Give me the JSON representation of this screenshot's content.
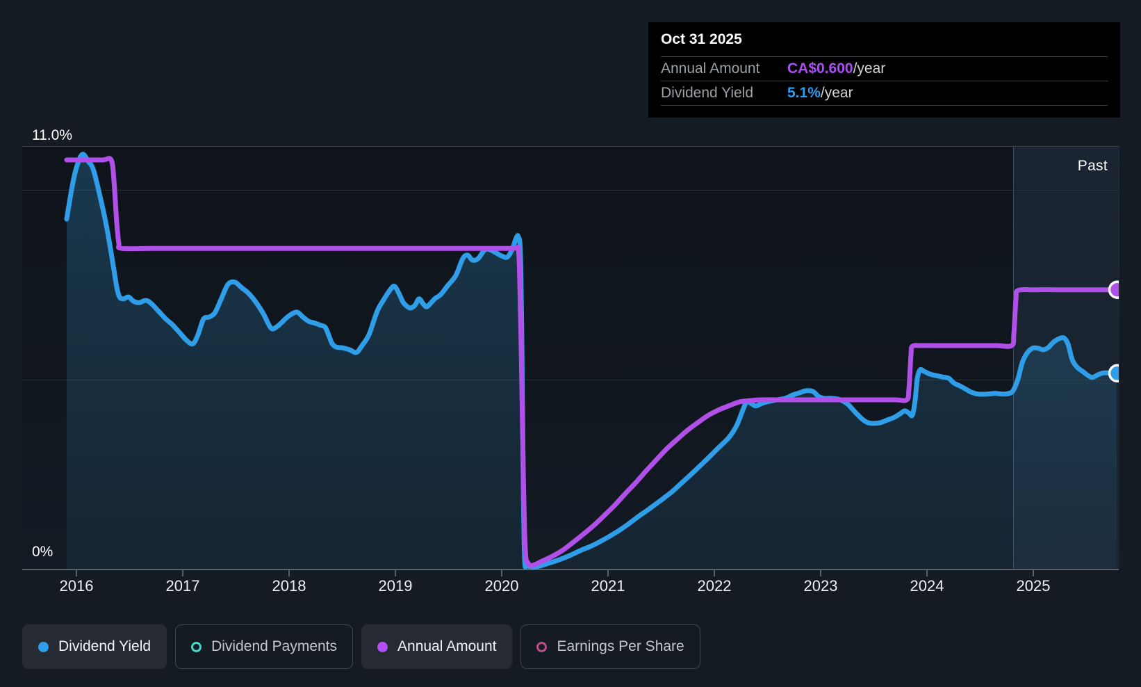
{
  "tooltip": {
    "date": "Oct 31 2025",
    "rows": [
      {
        "label": "Annual Amount",
        "value": "CA$0.600",
        "suffix": "/year",
        "value_color": "#ab4ef2"
      },
      {
        "label": "Dividend Yield",
        "value": "5.1%",
        "suffix": "/year",
        "value_color": "#2b9df2"
      }
    ]
  },
  "axis": {
    "y_top_label": "11.0%",
    "y_bottom_label": "0%",
    "years": [
      "2016",
      "2017",
      "2018",
      "2019",
      "2020",
      "2021",
      "2022",
      "2023",
      "2024",
      "2025"
    ],
    "past_label": "Past"
  },
  "legend": [
    {
      "label": "Dividend Yield",
      "swatch": "dot",
      "color": "#2f9de8",
      "active": true
    },
    {
      "label": "Dividend Payments",
      "swatch": "ring",
      "color": "#41d8c4",
      "active": false
    },
    {
      "label": "Annual Amount",
      "swatch": "dot",
      "color": "#b14ff0",
      "active": true
    },
    {
      "label": "Earnings Per Share",
      "swatch": "ring",
      "color": "#bd4b85",
      "active": false
    }
  ],
  "chart_data": {
    "type": "line",
    "title": "Dividend history",
    "x_range": [
      2015.9,
      2025.83
    ],
    "y_axis": {
      "min": 0,
      "max": 11,
      "unit": "%",
      "top_border_pct": 11,
      "gridlines_pct": [
        10,
        5
      ]
    },
    "past_band_start_year": 2024.81,
    "legend_position": "bottom",
    "series": [
      {
        "name": "Dividend Yield",
        "color": "#2f9de8",
        "unit": "%",
        "area_fill": true,
        "endpoint_dot": true,
        "points": [
          [
            2015.908,
            9.21
          ],
          [
            2015.967,
            10.18
          ],
          [
            2016.013,
            10.68
          ],
          [
            2016.059,
            10.92
          ],
          [
            2016.111,
            10.73
          ],
          [
            2016.163,
            10.48
          ],
          [
            2016.248,
            9.49
          ],
          [
            2016.294,
            8.85
          ],
          [
            2016.346,
            7.99
          ],
          [
            2016.379,
            7.42
          ],
          [
            2016.405,
            7.16
          ],
          [
            2016.444,
            7.11
          ],
          [
            2016.49,
            7.16
          ],
          [
            2016.536,
            7.05
          ],
          [
            2016.588,
            7.01
          ],
          [
            2016.654,
            7.07
          ],
          [
            2016.706,
            6.98
          ],
          [
            2016.771,
            6.79
          ],
          [
            2016.837,
            6.59
          ],
          [
            2016.902,
            6.43
          ],
          [
            2016.98,
            6.19
          ],
          [
            2017.046,
            5.99
          ],
          [
            2017.098,
            5.93
          ],
          [
            2017.144,
            6.17
          ],
          [
            2017.196,
            6.58
          ],
          [
            2017.248,
            6.63
          ],
          [
            2017.301,
            6.74
          ],
          [
            2017.359,
            7.09
          ],
          [
            2017.425,
            7.49
          ],
          [
            2017.49,
            7.55
          ],
          [
            2017.556,
            7.4
          ],
          [
            2017.621,
            7.25
          ],
          [
            2017.686,
            7.03
          ],
          [
            2017.758,
            6.72
          ],
          [
            2017.83,
            6.34
          ],
          [
            2017.882,
            6.37
          ],
          [
            2017.928,
            6.48
          ],
          [
            2017.993,
            6.65
          ],
          [
            2018.072,
            6.76
          ],
          [
            2018.131,
            6.63
          ],
          [
            2018.183,
            6.52
          ],
          [
            2018.242,
            6.47
          ],
          [
            2018.301,
            6.41
          ],
          [
            2018.34,
            6.36
          ],
          [
            2018.373,
            6.15
          ],
          [
            2018.405,
            5.93
          ],
          [
            2018.444,
            5.84
          ],
          [
            2018.503,
            5.82
          ],
          [
            2018.569,
            5.77
          ],
          [
            2018.634,
            5.7
          ],
          [
            2018.686,
            5.88
          ],
          [
            2018.752,
            6.17
          ],
          [
            2018.83,
            6.79
          ],
          [
            2018.895,
            7.11
          ],
          [
            2018.954,
            7.36
          ],
          [
            2018.993,
            7.44
          ],
          [
            2019.039,
            7.22
          ],
          [
            2019.078,
            7.0
          ],
          [
            2019.137,
            6.87
          ],
          [
            2019.183,
            6.94
          ],
          [
            2019.222,
            7.11
          ],
          [
            2019.261,
            6.98
          ],
          [
            2019.294,
            6.9
          ],
          [
            2019.333,
            7.0
          ],
          [
            2019.373,
            7.12
          ],
          [
            2019.425,
            7.22
          ],
          [
            2019.49,
            7.45
          ],
          [
            2019.569,
            7.73
          ],
          [
            2019.634,
            8.17
          ],
          [
            2019.68,
            8.26
          ],
          [
            2019.725,
            8.13
          ],
          [
            2019.778,
            8.17
          ],
          [
            2019.83,
            8.37
          ],
          [
            2019.863,
            8.42
          ],
          [
            2019.902,
            8.39
          ],
          [
            2019.948,
            8.32
          ],
          [
            2020.0,
            8.24
          ],
          [
            2020.052,
            8.21
          ],
          [
            2020.098,
            8.41
          ],
          [
            2020.137,
            8.72
          ],
          [
            2020.157,
            8.74
          ],
          [
            2020.176,
            8.3
          ],
          [
            2020.19,
            5.82
          ],
          [
            2020.203,
            2.16
          ],
          [
            2020.216,
            0.24
          ],
          [
            2020.235,
            0.09
          ],
          [
            2020.288,
            0.05
          ],
          [
            2020.353,
            0.07
          ],
          [
            2020.444,
            0.15
          ],
          [
            2020.542,
            0.24
          ],
          [
            2020.641,
            0.35
          ],
          [
            2020.739,
            0.48
          ],
          [
            2020.843,
            0.6
          ],
          [
            2020.948,
            0.75
          ],
          [
            2021.059,
            0.93
          ],
          [
            2021.163,
            1.12
          ],
          [
            2021.268,
            1.34
          ],
          [
            2021.379,
            1.56
          ],
          [
            2021.49,
            1.79
          ],
          [
            2021.601,
            2.03
          ],
          [
            2021.712,
            2.31
          ],
          [
            2021.817,
            2.58
          ],
          [
            2021.928,
            2.88
          ],
          [
            2022.033,
            3.17
          ],
          [
            2022.137,
            3.46
          ],
          [
            2022.209,
            3.77
          ],
          [
            2022.268,
            4.18
          ],
          [
            2022.307,
            4.41
          ],
          [
            2022.353,
            4.34
          ],
          [
            2022.392,
            4.29
          ],
          [
            2022.451,
            4.36
          ],
          [
            2022.516,
            4.41
          ],
          [
            2022.588,
            4.45
          ],
          [
            2022.667,
            4.49
          ],
          [
            2022.739,
            4.58
          ],
          [
            2022.797,
            4.63
          ],
          [
            2022.863,
            4.69
          ],
          [
            2022.928,
            4.67
          ],
          [
            2022.98,
            4.54
          ],
          [
            2023.033,
            4.49
          ],
          [
            2023.098,
            4.49
          ],
          [
            2023.163,
            4.47
          ],
          [
            2023.216,
            4.41
          ],
          [
            2023.261,
            4.32
          ],
          [
            2023.327,
            4.12
          ],
          [
            2023.392,
            3.94
          ],
          [
            2023.444,
            3.85
          ],
          [
            2023.503,
            3.83
          ],
          [
            2023.562,
            3.85
          ],
          [
            2023.627,
            3.92
          ],
          [
            2023.693,
            3.99
          ],
          [
            2023.745,
            4.08
          ],
          [
            2023.791,
            4.16
          ],
          [
            2023.83,
            4.1
          ],
          [
            2023.863,
            4.05
          ],
          [
            2023.889,
            4.45
          ],
          [
            2023.908,
            5.0
          ],
          [
            2023.935,
            5.24
          ],
          [
            2023.974,
            5.2
          ],
          [
            2024.026,
            5.13
          ],
          [
            2024.085,
            5.09
          ],
          [
            2024.15,
            5.05
          ],
          [
            2024.203,
            5.02
          ],
          [
            2024.255,
            4.89
          ],
          [
            2024.307,
            4.82
          ],
          [
            2024.366,
            4.73
          ],
          [
            2024.418,
            4.65
          ],
          [
            2024.484,
            4.6
          ],
          [
            2024.562,
            4.6
          ],
          [
            2024.641,
            4.62
          ],
          [
            2024.719,
            4.6
          ],
          [
            2024.771,
            4.62
          ],
          [
            2024.81,
            4.69
          ],
          [
            2024.856,
            5.0
          ],
          [
            2024.895,
            5.42
          ],
          [
            2024.941,
            5.68
          ],
          [
            2024.993,
            5.81
          ],
          [
            2025.046,
            5.81
          ],
          [
            2025.092,
            5.77
          ],
          [
            2025.137,
            5.82
          ],
          [
            2025.19,
            5.97
          ],
          [
            2025.242,
            6.06
          ],
          [
            2025.288,
            6.08
          ],
          [
            2025.327,
            5.92
          ],
          [
            2025.366,
            5.51
          ],
          [
            2025.412,
            5.31
          ],
          [
            2025.464,
            5.2
          ],
          [
            2025.516,
            5.09
          ],
          [
            2025.556,
            5.04
          ],
          [
            2025.608,
            5.11
          ],
          [
            2025.66,
            5.16
          ],
          [
            2025.719,
            5.16
          ],
          [
            2025.784,
            5.15
          ]
        ]
      },
      {
        "name": "Annual Amount",
        "color": "#b050e8",
        "unit": "plotted on yield % scale; current value CA$0.600/year",
        "area_fill": false,
        "endpoint_dot": true,
        "points": [
          [
            2015.908,
            10.77
          ],
          [
            2016.1,
            10.77
          ],
          [
            2016.25,
            10.77
          ],
          [
            2016.327,
            10.77
          ],
          [
            2016.353,
            10.22
          ],
          [
            2016.379,
            9.12
          ],
          [
            2016.399,
            8.57
          ],
          [
            2016.425,
            8.44
          ],
          [
            2016.7,
            8.44
          ],
          [
            2017.0,
            8.44
          ],
          [
            2017.5,
            8.44
          ],
          [
            2018.0,
            8.44
          ],
          [
            2018.5,
            8.44
          ],
          [
            2019.0,
            8.44
          ],
          [
            2019.5,
            8.44
          ],
          [
            2019.9,
            8.44
          ],
          [
            2020.1,
            8.44
          ],
          [
            2020.144,
            8.44
          ],
          [
            2020.163,
            8.21
          ],
          [
            2020.183,
            5.82
          ],
          [
            2020.203,
            2.53
          ],
          [
            2020.222,
            0.51
          ],
          [
            2020.248,
            0.15
          ],
          [
            2020.288,
            0.09
          ],
          [
            2020.379,
            0.2
          ],
          [
            2020.477,
            0.33
          ],
          [
            2020.575,
            0.49
          ],
          [
            2020.673,
            0.7
          ],
          [
            2020.771,
            0.92
          ],
          [
            2020.869,
            1.15
          ],
          [
            2020.967,
            1.41
          ],
          [
            2021.065,
            1.68
          ],
          [
            2021.163,
            1.98
          ],
          [
            2021.261,
            2.27
          ],
          [
            2021.359,
            2.58
          ],
          [
            2021.458,
            2.88
          ],
          [
            2021.556,
            3.17
          ],
          [
            2021.654,
            3.42
          ],
          [
            2021.752,
            3.66
          ],
          [
            2021.85,
            3.86
          ],
          [
            2021.948,
            4.05
          ],
          [
            2022.046,
            4.19
          ],
          [
            2022.144,
            4.3
          ],
          [
            2022.242,
            4.4
          ],
          [
            2022.34,
            4.43
          ],
          [
            2022.438,
            4.45
          ],
          [
            2022.7,
            4.45
          ],
          [
            2023.0,
            4.45
          ],
          [
            2023.4,
            4.45
          ],
          [
            2023.7,
            4.45
          ],
          [
            2023.81,
            4.45
          ],
          [
            2023.83,
            4.73
          ],
          [
            2023.85,
            5.64
          ],
          [
            2023.863,
            5.86
          ],
          [
            2023.95,
            5.88
          ],
          [
            2024.1,
            5.88
          ],
          [
            2024.4,
            5.88
          ],
          [
            2024.65,
            5.88
          ],
          [
            2024.797,
            5.88
          ],
          [
            2024.817,
            6.19
          ],
          [
            2024.837,
            7.11
          ],
          [
            2024.856,
            7.33
          ],
          [
            2025.0,
            7.35
          ],
          [
            2025.25,
            7.35
          ],
          [
            2025.5,
            7.35
          ],
          [
            2025.784,
            7.35
          ]
        ]
      }
    ],
    "series_not_plotted": [
      "Dividend Payments",
      "Earnings Per Share"
    ]
  }
}
